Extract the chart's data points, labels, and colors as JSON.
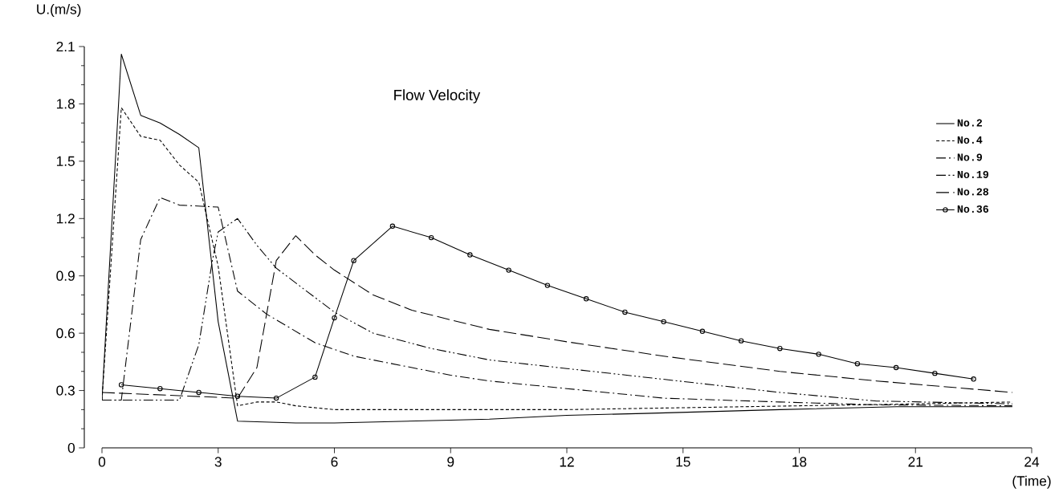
{
  "chart_data": {
    "type": "line",
    "title": "Flow Velocity",
    "xlabel": "(Time)",
    "ylabel": "U.(m/s)",
    "xlim": [
      0,
      24
    ],
    "xticks": [
      0,
      3,
      6,
      9,
      12,
      15,
      18,
      21,
      24
    ],
    "ylim": [
      0,
      2.1
    ],
    "yticks": [
      0,
      0.3,
      0.6,
      0.9,
      1.2,
      1.5,
      1.8,
      2.1
    ],
    "grid": false,
    "legend": "top right",
    "series": [
      {
        "name": "No.2",
        "color": "#000000",
        "line_style": "solid",
        "marker": "none",
        "x": [
          0,
          0.5,
          1,
          1.5,
          2,
          2.5,
          3,
          3.5,
          5,
          6,
          9,
          10,
          12,
          14,
          17.5,
          20.5,
          23.5
        ],
        "values": [
          0.25,
          2.06,
          1.74,
          1.7,
          1.64,
          1.57,
          0.66,
          0.14,
          0.13,
          0.13,
          0.145,
          0.15,
          0.17,
          0.18,
          0.2,
          0.215,
          0.215
        ]
      },
      {
        "name": "No.4",
        "color": "#000000",
        "line_style": "dashed",
        "marker": "none",
        "x": [
          0,
          0.5,
          1,
          1.5,
          2,
          2.5,
          3,
          3.5,
          4,
          4.5,
          5,
          6,
          9,
          12,
          15,
          18,
          21,
          23.5
        ],
        "values": [
          0.25,
          1.78,
          1.63,
          1.61,
          1.48,
          1.39,
          0.95,
          0.22,
          0.24,
          0.24,
          0.22,
          0.2,
          0.2,
          0.2,
          0.21,
          0.22,
          0.23,
          0.24
        ]
      },
      {
        "name": "No.9",
        "color": "#000000",
        "line_style": "dashdot",
        "marker": "none",
        "x": [
          0,
          0.5,
          1,
          1.5,
          2,
          3,
          3.5,
          4.25,
          5.5,
          6.5,
          7.75,
          9,
          10,
          12,
          14.5,
          17.5,
          20,
          23.5
        ],
        "values": [
          0.25,
          0.25,
          1.09,
          1.31,
          1.27,
          1.26,
          0.82,
          0.7,
          0.55,
          0.48,
          0.43,
          0.38,
          0.35,
          0.31,
          0.26,
          0.24,
          0.225,
          0.22
        ]
      },
      {
        "name": "No.19",
        "color": "#000000",
        "line_style": "dashdotdot",
        "marker": "none",
        "x": [
          0,
          2,
          2.5,
          2.85,
          3,
          3.5,
          4,
          4.5,
          6,
          7,
          8.5,
          10,
          12,
          14,
          17.5,
          20,
          23.5
        ],
        "values": [
          0.25,
          0.25,
          0.54,
          0.98,
          1.13,
          1.2,
          1.06,
          0.94,
          0.71,
          0.6,
          0.52,
          0.46,
          0.415,
          0.37,
          0.29,
          0.245,
          0.23
        ]
      },
      {
        "name": "No.28",
        "color": "#000000",
        "line_style": "longdashed",
        "marker": "none",
        "x": [
          0,
          3.5,
          4,
          4.5,
          5,
          5.5,
          6,
          7,
          8,
          9,
          10,
          12,
          14.5,
          17.5,
          20,
          23.5
        ],
        "values": [
          0.29,
          0.26,
          0.42,
          0.98,
          1.11,
          1.01,
          0.93,
          0.8,
          0.72,
          0.67,
          0.62,
          0.555,
          0.48,
          0.4,
          0.35,
          0.29
        ]
      },
      {
        "name": "No.36",
        "color": "#000000",
        "line_style": "solid",
        "marker": "circle",
        "x": [
          0.5,
          1.5,
          2.5,
          3.5,
          4.5,
          5.5,
          6,
          6.5,
          7.5,
          8.5,
          9.5,
          10.5,
          11.5,
          12.5,
          13.5,
          14.5,
          15.5,
          16.5,
          17.5,
          18.5,
          19.5,
          20.5,
          21.5,
          22.5
        ],
        "values": [
          0.33,
          0.31,
          0.29,
          0.27,
          0.26,
          0.37,
          0.68,
          0.98,
          1.16,
          1.1,
          1.01,
          0.93,
          0.85,
          0.78,
          0.71,
          0.66,
          0.61,
          0.56,
          0.52,
          0.49,
          0.44,
          0.42,
          0.39,
          0.36
        ]
      }
    ]
  }
}
